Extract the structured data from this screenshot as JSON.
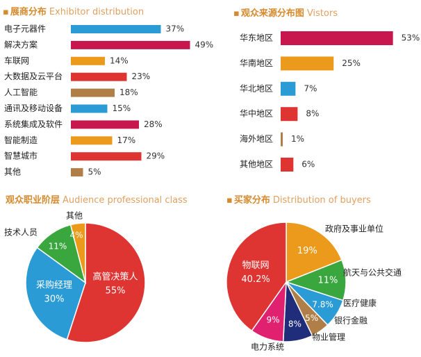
{
  "sections": {
    "exhibitor": {
      "dot": "▪",
      "title_cn": "展商分布",
      "title_en": "Exhibitor distribution"
    },
    "visitors": {
      "dot": "▪",
      "title_cn": "观众来源分布图",
      "title_en": "Vistors"
    },
    "audience": {
      "dot": "",
      "title_cn": "观众职业阶层",
      "title_en": "Audience professional class"
    },
    "buyers": {
      "dot": "▪",
      "title_cn": "买家分布",
      "title_en": "Distribution of buyers"
    }
  },
  "chart_data": [
    {
      "type": "bar",
      "orientation": "horizontal",
      "title": "展商分布 Exhibitor distribution",
      "categories": [
        "电子元器件",
        "解决方案",
        "车联网",
        "大数据及云平台",
        "人工智能",
        "通讯及移动设备",
        "系统集成及软件",
        "智能制造",
        "智慧城市",
        "其他"
      ],
      "values": [
        37,
        49,
        14,
        23,
        18,
        15,
        28,
        17,
        29,
        5
      ],
      "labels": [
        "37%",
        "49%",
        "14%",
        "23%",
        "18%",
        "15%",
        "28%",
        "17%",
        "29%",
        "5%"
      ],
      "colors": [
        "#2b9bd6",
        "#c8164f",
        "#ec9a1b",
        "#de3432",
        "#b07f48",
        "#2b9bd6",
        "#c8164f",
        "#ec9a1b",
        "#de3432",
        "#b07f48"
      ],
      "unit": "%"
    },
    {
      "type": "bar",
      "orientation": "horizontal",
      "title": "观众来源分布图 Vistors",
      "categories": [
        "华东地区",
        "华南地区",
        "华北地区",
        "华中地区",
        "海外地区",
        "其他地区"
      ],
      "values": [
        53,
        25,
        7,
        8,
        1,
        6
      ],
      "labels": [
        "53%",
        "25%",
        "7%",
        "8%",
        "1%",
        "6%"
      ],
      "colors": [
        "#c8164f",
        "#ec9a1b",
        "#2b9bd6",
        "#de3432",
        "#b07f48",
        "#de3432"
      ],
      "unit": "%"
    },
    {
      "type": "pie",
      "title": "观众职业阶层 Audience professional class",
      "slices": [
        {
          "label": "高管决策人",
          "value": 55,
          "value_label": "55%",
          "color": "#de3432"
        },
        {
          "label": "采购经理",
          "value": 30,
          "value_label": "30%",
          "color": "#2b9bd6"
        },
        {
          "label": "技术人员",
          "value": 11,
          "value_label": "11%",
          "color": "#3aa63e"
        },
        {
          "label": "其他",
          "value": 4,
          "value_label": "4%",
          "color": "#ec9a1b"
        }
      ]
    },
    {
      "type": "pie",
      "title": "买家分布 Distribution of buyers",
      "slices": [
        {
          "label": "政府及事业单位",
          "value": 19,
          "value_label": "19%",
          "color": "#ec9a1b"
        },
        {
          "label": "航天与公共交通",
          "value": 11,
          "value_label": "11%",
          "color": "#3aa63e"
        },
        {
          "label": "医疗健康",
          "value": 7.8,
          "value_label": "7.8%",
          "color": "#2b9bd6"
        },
        {
          "label": "银行金融",
          "value": 5,
          "value_label": "5%",
          "color": "#b07f48"
        },
        {
          "label": "物业管理",
          "value": 8,
          "value_label": "8%",
          "color": "#1f2d7a"
        },
        {
          "label": "电力系统",
          "value": 9,
          "value_label": "9%",
          "color": "#e0216f"
        },
        {
          "label": "物联网",
          "value": 40.2,
          "value_label": "40.2%",
          "color": "#de3432"
        }
      ]
    }
  ]
}
